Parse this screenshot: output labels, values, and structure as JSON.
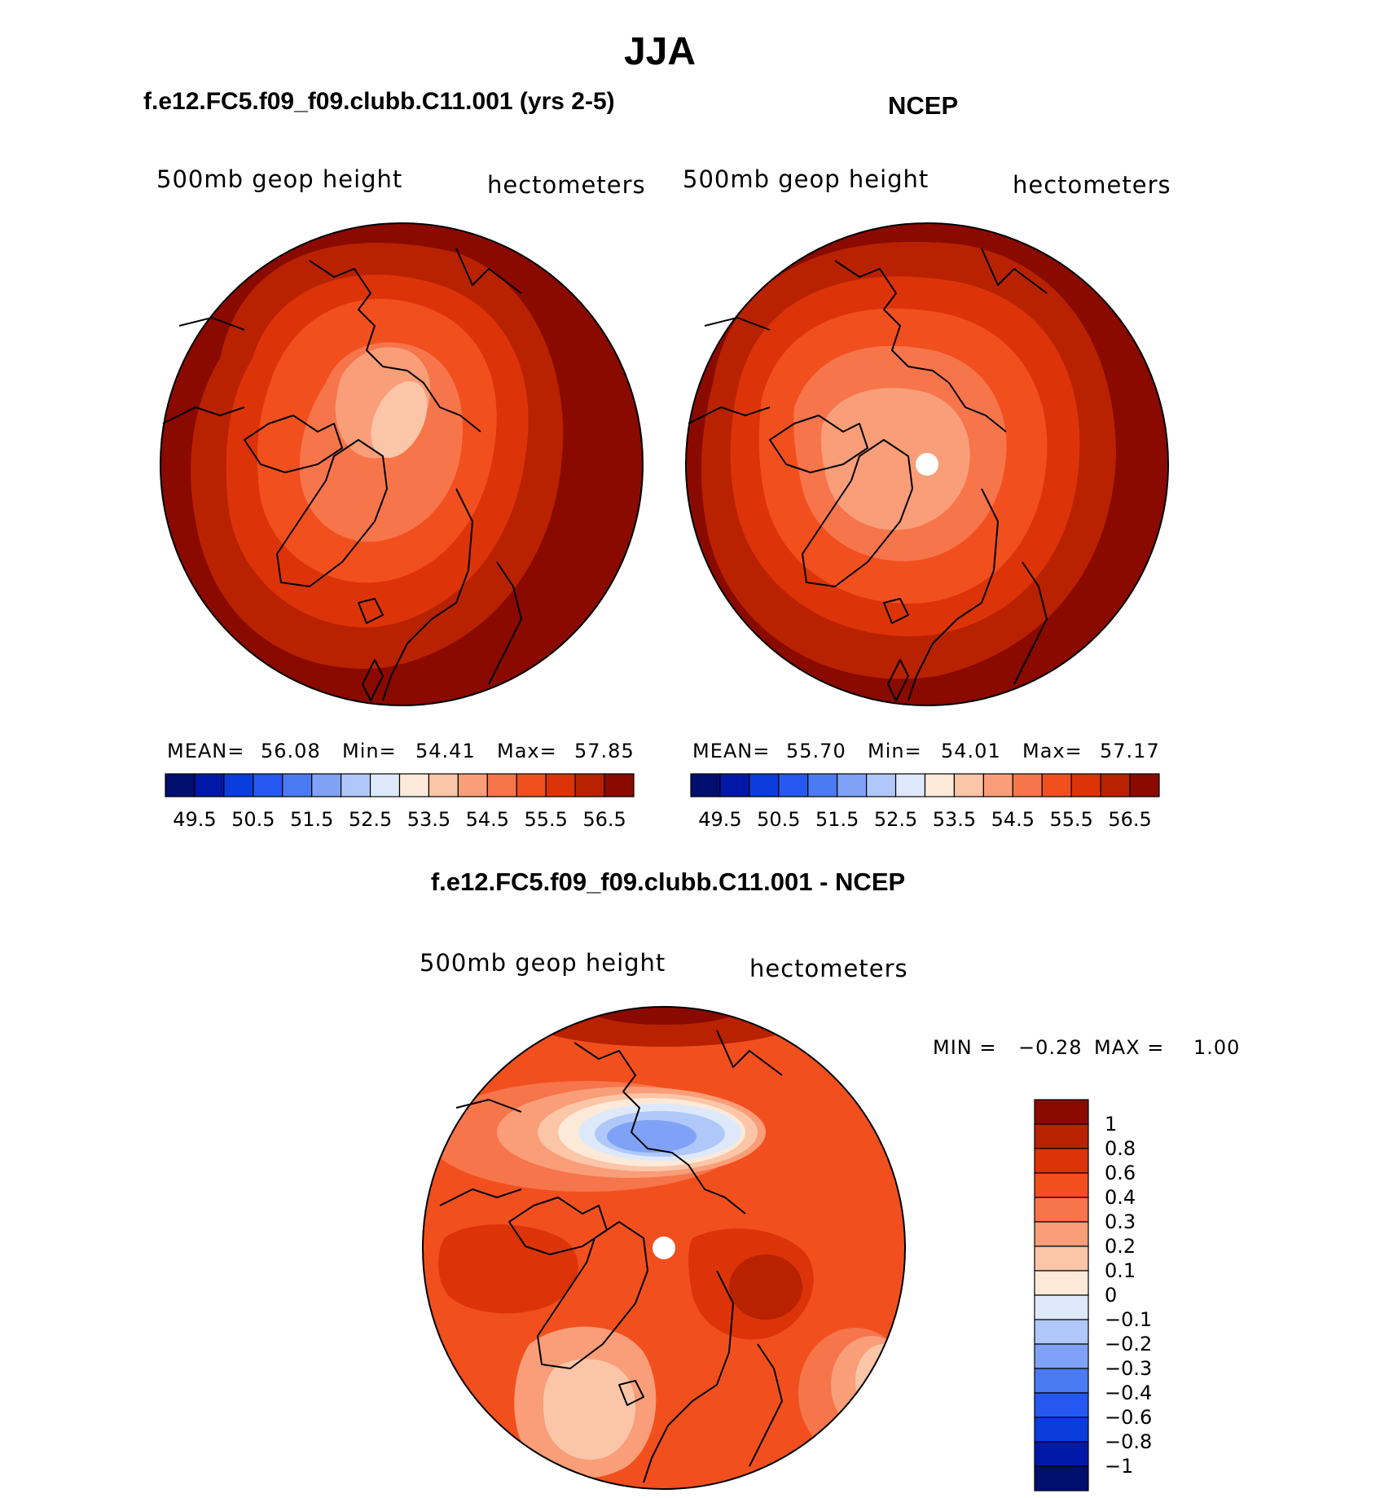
{
  "season": "JJA",
  "panels": {
    "model": {
      "title": "f.e12.FC5.f09_f09.clubb.C11.001 (yrs 2-5)",
      "variable": "500mb geop height",
      "units": "hectometers",
      "stats": {
        "mean_label": "MEAN=",
        "mean": "56.08",
        "min_label": "Min=",
        "min": "54.41",
        "max_label": "Max=",
        "max": "57.85"
      }
    },
    "obs": {
      "title": "NCEP",
      "variable": "500mb geop height",
      "units": "hectometers",
      "stats": {
        "mean_label": "MEAN=",
        "mean": "55.70",
        "min_label": "Min=",
        "min": "54.01",
        "max_label": "Max=",
        "max": "57.17"
      }
    },
    "diff": {
      "title": "f.e12.FC5.f09_f09.clubb.C11.001 - NCEP",
      "variable": "500mb geop height",
      "units": "hectometers",
      "minmax": {
        "min_label": "MIN =",
        "min": "−0.28",
        "max_label": "MAX =",
        "max": "1.00"
      }
    }
  },
  "colorbar_top": {
    "colors": [
      "#000e6e",
      "#0018a8",
      "#0a3ddb",
      "#2458f0",
      "#4a7bf2",
      "#7fa2f6",
      "#b0c8f9",
      "#dde9fb",
      "#fce9d8",
      "#fbc5a8",
      "#f99e78",
      "#f7754b",
      "#f24f1f",
      "#dc3408",
      "#b82200",
      "#8a0a00"
    ],
    "labels": [
      "49.5",
      "50.5",
      "51.5",
      "52.5",
      "53.5",
      "54.5",
      "55.5",
      "56.5"
    ]
  },
  "colorbar_diff": {
    "colors": [
      "#8a0a00",
      "#b82200",
      "#dc3408",
      "#f24f1f",
      "#f7754b",
      "#f99e78",
      "#fbc5a8",
      "#fce9d8",
      "#dde9fb",
      "#b0c8f9",
      "#7fa2f6",
      "#4a7bf2",
      "#2458f0",
      "#0a3ddb",
      "#0018a8",
      "#000e6e"
    ],
    "labels": [
      "1",
      "0.8",
      "0.6",
      "0.4",
      "0.3",
      "0.2",
      "0.1",
      "0",
      "−0.1",
      "−0.2",
      "−0.3",
      "−0.4",
      "−0.6",
      "−0.8",
      "−1"
    ]
  }
}
